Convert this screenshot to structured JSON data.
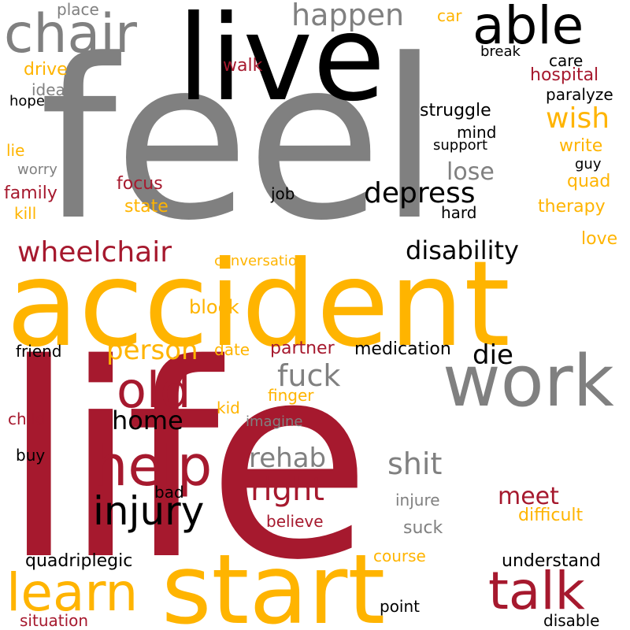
{
  "palette": {
    "gray": "#808080",
    "black": "#000000",
    "gold": "#FFB400",
    "crimson": "#A6192E"
  },
  "words": [
    {
      "text": "feel",
      "color": "gray"
    },
    {
      "text": "life",
      "color": "crimson"
    },
    {
      "text": "accident",
      "color": "gold"
    },
    {
      "text": "start",
      "color": "gold"
    },
    {
      "text": "live",
      "color": "black"
    },
    {
      "text": "work",
      "color": "gray"
    },
    {
      "text": "chair",
      "color": "gray"
    },
    {
      "text": "able",
      "color": "black"
    },
    {
      "text": "help",
      "color": "crimson"
    },
    {
      "text": "old",
      "color": "crimson"
    },
    {
      "text": "learn",
      "color": "gold"
    },
    {
      "text": "talk",
      "color": "crimson"
    },
    {
      "text": "injury",
      "color": "black"
    },
    {
      "text": "depress",
      "color": "black"
    },
    {
      "text": "wheelchair",
      "color": "crimson"
    },
    {
      "text": "happen",
      "color": "gray"
    },
    {
      "text": "disability",
      "color": "black"
    },
    {
      "text": "right",
      "color": "crimson"
    },
    {
      "text": "rehab",
      "color": "gray"
    },
    {
      "text": "shit",
      "color": "gray"
    },
    {
      "text": "fuck",
      "color": "gray"
    },
    {
      "text": "person",
      "color": "gold"
    },
    {
      "text": "wish",
      "color": "gold"
    },
    {
      "text": "home",
      "color": "black"
    },
    {
      "text": "die",
      "color": "black"
    },
    {
      "text": "meet",
      "color": "crimson"
    },
    {
      "text": "lose",
      "color": "gray"
    },
    {
      "text": "hospital",
      "color": "crimson"
    },
    {
      "text": "therapy",
      "color": "gold"
    },
    {
      "text": "struggle",
      "color": "black"
    },
    {
      "text": "medication",
      "color": "black"
    },
    {
      "text": "difficult",
      "color": "gold"
    },
    {
      "text": "understand",
      "color": "black"
    },
    {
      "text": "quadriplegic",
      "color": "black"
    },
    {
      "text": "block",
      "color": "gold"
    },
    {
      "text": "partner",
      "color": "crimson"
    },
    {
      "text": "family",
      "color": "crimson"
    },
    {
      "text": "focus",
      "color": "crimson"
    },
    {
      "text": "state",
      "color": "gold"
    },
    {
      "text": "walk",
      "color": "crimson"
    },
    {
      "text": "drive",
      "color": "gold"
    },
    {
      "text": "write",
      "color": "gold"
    },
    {
      "text": "quad",
      "color": "gold"
    },
    {
      "text": "love",
      "color": "gold"
    },
    {
      "text": "hard",
      "color": "black"
    },
    {
      "text": "paralyze",
      "color": "black"
    },
    {
      "text": "mind",
      "color": "black"
    },
    {
      "text": "care",
      "color": "black"
    },
    {
      "text": "place",
      "color": "gray"
    },
    {
      "text": "car",
      "color": "gold"
    },
    {
      "text": "break",
      "color": "black"
    },
    {
      "text": "idea",
      "color": "gray"
    },
    {
      "text": "hope",
      "color": "black"
    },
    {
      "text": "lie",
      "color": "gold"
    },
    {
      "text": "worry",
      "color": "gray"
    },
    {
      "text": "kill",
      "color": "gold"
    },
    {
      "text": "job",
      "color": "black"
    },
    {
      "text": "support",
      "color": "black"
    },
    {
      "text": "guy",
      "color": "black"
    },
    {
      "text": "conversation",
      "color": "gold"
    },
    {
      "text": "friend",
      "color": "black"
    },
    {
      "text": "date",
      "color": "gold"
    },
    {
      "text": "finger",
      "color": "gold"
    },
    {
      "text": "kid",
      "color": "gold"
    },
    {
      "text": "child",
      "color": "crimson"
    },
    {
      "text": "imagine",
      "color": "gray"
    },
    {
      "text": "buy",
      "color": "black"
    },
    {
      "text": "bad",
      "color": "black"
    },
    {
      "text": "believe",
      "color": "crimson"
    },
    {
      "text": "injure",
      "color": "gray"
    },
    {
      "text": "suck",
      "color": "gray"
    },
    {
      "text": "course",
      "color": "gold"
    },
    {
      "text": "point",
      "color": "black"
    },
    {
      "text": "situation",
      "color": "crimson"
    },
    {
      "text": "disable",
      "color": "black"
    }
  ]
}
